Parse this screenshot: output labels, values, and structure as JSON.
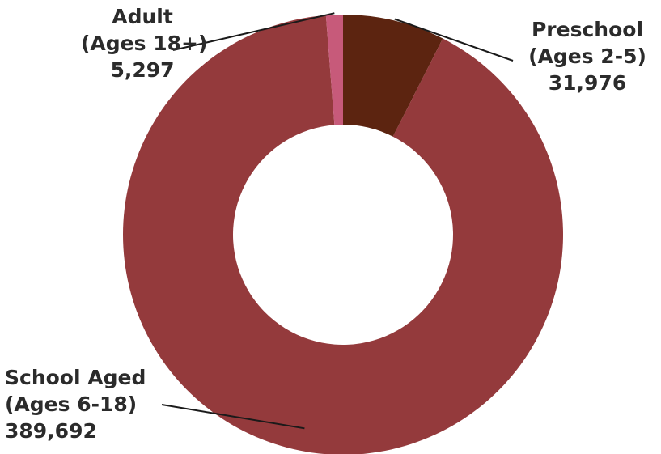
{
  "chart_data": {
    "type": "pie",
    "variant": "donut",
    "title": "",
    "legend": "none",
    "slices": [
      {
        "label_line1": "Preschool",
        "label_line2": "(Ages 2-5)",
        "value": 31976,
        "value_label": "31,976",
        "color": "#5c2410"
      },
      {
        "label_line1": "School Aged",
        "label_line2": "(Ages 6-18)",
        "value": 389692,
        "value_label": "389,692",
        "color": "#943a3c"
      },
      {
        "label_line1": "Adult",
        "label_line2": "(Ages 18+)",
        "value": 5297,
        "value_label": "5,297",
        "color": "#c75a7a"
      }
    ]
  }
}
